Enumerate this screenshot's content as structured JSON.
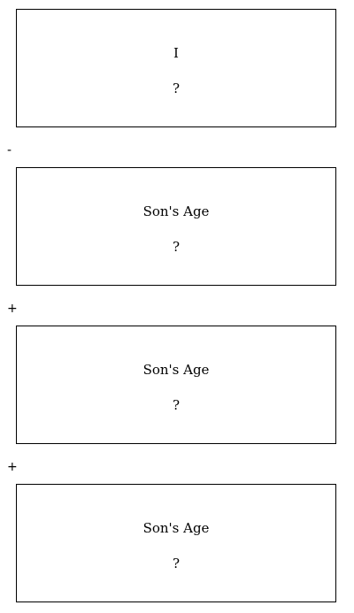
{
  "cards": [
    {
      "title": "I",
      "value": "?"
    },
    {
      "title": "Son's Age",
      "value": "?"
    },
    {
      "title": "Son's Age",
      "value": "?"
    },
    {
      "title": "Son's Age",
      "value": "?"
    }
  ],
  "operators": [
    "-",
    "+",
    "+"
  ]
}
